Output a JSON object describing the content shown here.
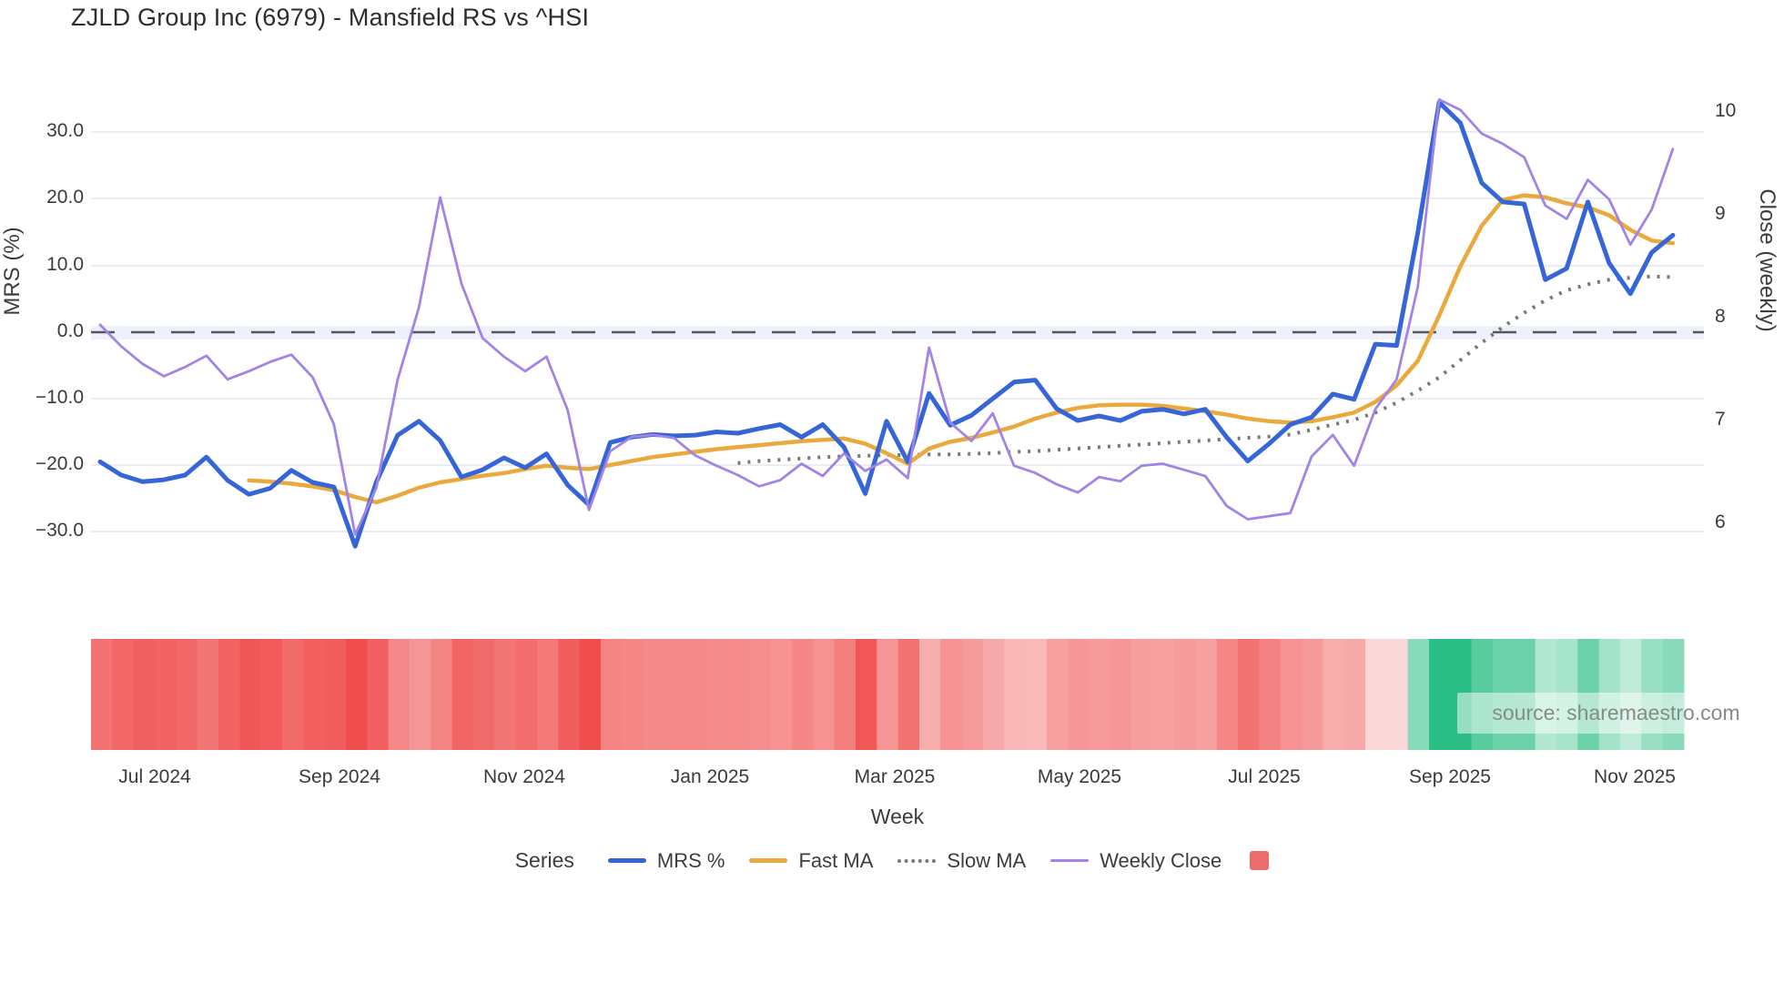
{
  "title": "ZJLD Group Inc (6979) - Mansfield RS vs ^HSI",
  "watermark": "source: sharemaestro.com",
  "axes": {
    "left_title": "MRS (%)",
    "right_title": "Close (weekly)",
    "x_title": "Week"
  },
  "legend": {
    "title": "Series",
    "items": [
      {
        "label": "MRS %",
        "color": "#3565d6",
        "style": "solid"
      },
      {
        "label": "Fast MA",
        "color": "#e9a93d",
        "style": "solid"
      },
      {
        "label": "Slow MA",
        "color": "#787878",
        "style": "dotted"
      },
      {
        "label": "Weekly Close",
        "color": "#a383e3",
        "style": "solid"
      }
    ],
    "extra_swatch_color": "#ee6b6b"
  },
  "colors": {
    "grid": "#e9eaf4",
    "zero_line": "#56565e",
    "heat_negative": "#f04d4d",
    "heat_positive": "#2abd85",
    "heat_neg_light": "#fce2e2",
    "heat_pos_light": "#e2f6ed"
  },
  "chart_data": {
    "type": "line",
    "title": "ZJLD Group Inc (6979) - Mansfield RS vs ^HSI",
    "xlabel": "Week",
    "ylabel_left": "MRS (%)",
    "ylabel_right": "Close (weekly)",
    "x_tick_labels": [
      "Jul 2024",
      "Sep 2024",
      "Nov 2024",
      "Jan 2025",
      "Mar 2025",
      "May 2025",
      "Jul 2025",
      "Sep 2025",
      "Nov 2025"
    ],
    "y_tick_labels_left": [
      "30.0",
      "20.0",
      "10.0",
      "0.0",
      "−10.0",
      "−20.0",
      "−30.0"
    ],
    "y_tick_labels_right": [
      "10",
      "9",
      "8",
      "7",
      "6"
    ],
    "ylim_left": [
      -40,
      41.8
    ],
    "ylim_right": [
      5.25,
      10.56
    ],
    "zero_reference_line": 0,
    "n_weeks": 75,
    "legend_position": "bottom",
    "grid": "horizontal-only",
    "series": [
      {
        "name": "MRS %",
        "axis": "left",
        "color": "#3565d6",
        "style": "solid",
        "width": 5,
        "values": [
          -19.5,
          -21.5,
          -22.5,
          -22.2,
          -21.5,
          -18.8,
          -22.3,
          -24.4,
          -23.5,
          -20.8,
          -22.6,
          -23.3,
          -32.2,
          -22.5,
          -15.5,
          -13.4,
          -16.3,
          -21.8,
          -20.7,
          -18.9,
          -20.4,
          -18.3,
          -23.0,
          -26.0,
          -16.6,
          -15.8,
          -15.4,
          -15.6,
          -15.5,
          -15.0,
          -15.2,
          -14.5,
          -13.9,
          -15.8,
          -13.9,
          -17.3,
          -24.3,
          -13.4,
          -19.5,
          -9.2,
          -14.0,
          -12.5,
          -10.0,
          -7.5,
          -7.2,
          -11.5,
          -13.3,
          -12.6,
          -13.3,
          -11.9,
          -11.6,
          -12.3,
          -11.6,
          -15.8,
          -19.4,
          -16.8,
          -13.9,
          -12.8,
          -9.3,
          -10.1,
          -1.8,
          -2.0,
          15.0,
          34.6,
          31.5,
          22.5,
          19.6,
          19.3,
          7.9,
          9.6,
          19.6,
          10.4,
          5.8,
          12.0,
          14.6
        ]
      },
      {
        "name": "Fast MA",
        "axis": "left",
        "color": "#e9a93d",
        "style": "solid",
        "width": 4.5,
        "values": [
          null,
          null,
          null,
          null,
          null,
          null,
          null,
          -22.3,
          -22.5,
          -22.8,
          -23.2,
          -23.8,
          -24.8,
          -25.6,
          -24.6,
          -23.4,
          -22.6,
          -22.1,
          -21.6,
          -21.2,
          -20.6,
          -20.1,
          -20.4,
          -20.6,
          -20.0,
          -19.4,
          -18.8,
          -18.4,
          -18.0,
          -17.6,
          -17.3,
          -17.0,
          -16.7,
          -16.4,
          -16.2,
          -16.0,
          -16.8,
          -18.2,
          -19.8,
          -17.5,
          -16.5,
          -15.9,
          -15.1,
          -14.2,
          -13.0,
          -12.1,
          -11.4,
          -11.0,
          -10.9,
          -10.9,
          -11.1,
          -11.5,
          -11.9,
          -12.4,
          -13.0,
          -13.4,
          -13.6,
          -13.4,
          -12.8,
          -12.1,
          -10.5,
          -8.0,
          -4.3,
          2.5,
          9.9,
          16.0,
          19.9,
          20.6,
          20.3,
          19.4,
          18.8,
          17.6,
          15.4,
          13.8,
          13.4
        ]
      },
      {
        "name": "Slow MA",
        "axis": "left",
        "color": "#787878",
        "style": "dotted",
        "width": 4,
        "values": [
          null,
          null,
          null,
          null,
          null,
          null,
          null,
          null,
          null,
          null,
          null,
          null,
          null,
          null,
          null,
          null,
          null,
          null,
          null,
          null,
          null,
          null,
          null,
          null,
          null,
          null,
          null,
          null,
          null,
          null,
          -19.7,
          -19.4,
          -19.2,
          -19.0,
          -18.8,
          -18.7,
          -18.6,
          -18.5,
          -18.5,
          -18.4,
          -18.4,
          -18.3,
          -18.2,
          -18.0,
          -17.9,
          -17.7,
          -17.5,
          -17.3,
          -17.1,
          -16.9,
          -16.7,
          -16.5,
          -16.3,
          -16.1,
          -15.9,
          -15.7,
          -15.4,
          -14.7,
          -13.9,
          -13.2,
          -12.1,
          -10.6,
          -8.8,
          -6.8,
          -4.2,
          -1.6,
          0.8,
          2.9,
          4.8,
          6.3,
          7.2,
          7.9,
          8.2,
          8.4,
          8.3
        ]
      },
      {
        "name": "Weekly Close",
        "axis": "right",
        "color": "#a383e3",
        "style": "solid",
        "width": 2.8,
        "values": [
          7.93,
          7.72,
          7.55,
          7.43,
          7.52,
          7.63,
          7.4,
          7.48,
          7.57,
          7.64,
          7.42,
          6.96,
          5.89,
          6.35,
          7.4,
          8.1,
          9.17,
          8.33,
          7.8,
          7.62,
          7.48,
          7.62,
          7.1,
          6.13,
          6.7,
          6.84,
          6.86,
          6.83,
          6.66,
          6.56,
          6.47,
          6.36,
          6.42,
          6.58,
          6.46,
          6.68,
          6.51,
          6.62,
          6.44,
          7.71,
          6.98,
          6.8,
          7.07,
          6.56,
          6.49,
          6.38,
          6.3,
          6.45,
          6.41,
          6.56,
          6.58,
          6.52,
          6.46,
          6.17,
          6.04,
          6.07,
          6.1,
          6.65,
          6.86,
          6.56,
          7.11,
          7.4,
          8.3,
          10.12,
          10.02,
          9.79,
          9.69,
          9.56,
          9.09,
          8.96,
          9.34,
          9.15,
          8.71,
          9.05,
          9.64
        ]
      }
    ],
    "heatmap_strip": {
      "description": "weekly relative-strength heatmap, red = MRS negative, green = MRS positive, intensity scales with magnitude",
      "values_from": "MRS %"
    }
  }
}
